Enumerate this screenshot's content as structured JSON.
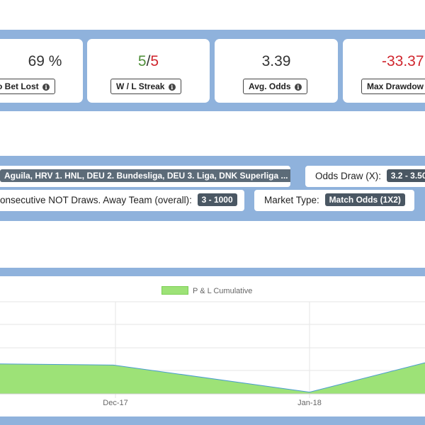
{
  "stats": [
    {
      "value": "69 %",
      "label": "o Bet Lost",
      "info": "i"
    },
    {
      "value_a": "5",
      "value_sep": "/",
      "value_b": "5",
      "label": "W / L Streak",
      "info": "i"
    },
    {
      "value": "3.39",
      "label": "Avg. Odds",
      "info": "i"
    },
    {
      "value": "-33.37",
      "label": "Max Drawdow"
    }
  ],
  "filters": {
    "leagues_chip": "Aguila, HRV 1. HNL, DEU 2. Bundesliga, DEU 3. Liga, DNK Superliga ...",
    "odds_draw_label": "Odds Draw (X):",
    "odds_draw_chip": "3.2 - 3.50",
    "consecutive_label": "onsecutive NOT Draws. Away Team (overall):",
    "consecutive_chip": "3 - 1000",
    "market_type_label": "Market Type:",
    "market_type_chip": "Match Odds (1X2)"
  },
  "colors": {
    "band": "#8fb2dc",
    "area_fill": "#9de277",
    "area_line": "#4a9ccf",
    "positive": "#4f8f3a",
    "negative": "#d0262e"
  },
  "chart_data": {
    "type": "area",
    "legend": [
      "P & L Cumulative"
    ],
    "grid": true,
    "x_tick_labels": [
      "Dec-17",
      "Jan-18"
    ],
    "series": [
      {
        "name": "P & L Cumulative",
        "values": [
          3.0,
          2.8,
          -2.0,
          3.2
        ]
      }
    ],
    "x_positions": [
      0,
      1,
      2,
      3
    ],
    "ylim": [
      -2.3,
      14
    ]
  }
}
